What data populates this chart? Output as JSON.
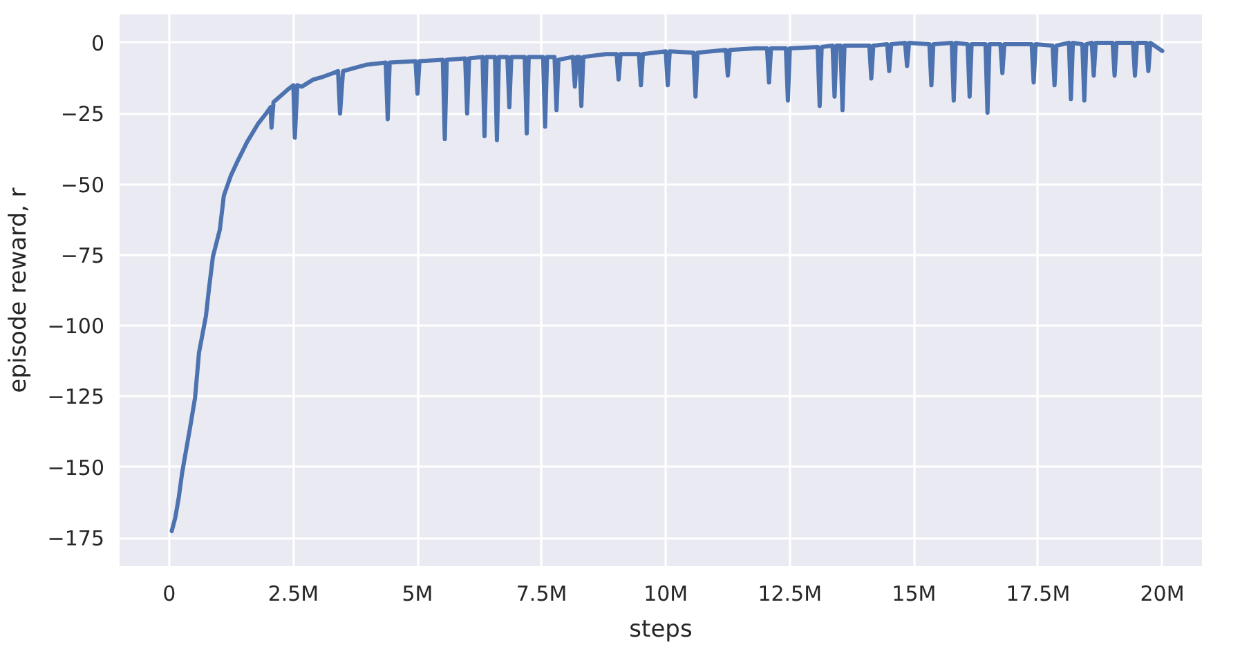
{
  "chart_data": {
    "type": "line",
    "xlabel": "steps",
    "ylabel": "episode reward, r",
    "xlim": [
      -1000000,
      20800000
    ],
    "ylim": [
      -185,
      10
    ],
    "xticks": [
      0,
      {
        "value": 2500000,
        "label": "2.5M"
      },
      {
        "value": 5000000,
        "label": "5M"
      },
      {
        "value": 7500000,
        "label": "7.5M"
      },
      {
        "value": 10000000,
        "label": "10M"
      },
      {
        "value": 12500000,
        "label": "12.5M"
      },
      {
        "value": 15000000,
        "label": "15M"
      },
      {
        "value": 17500000,
        "label": "17.5M"
      },
      {
        "value": 20000000,
        "label": "20M"
      }
    ],
    "yticks": [
      0,
      {
        "value": -25,
        "label": "−25"
      },
      {
        "value": -50,
        "label": "−50"
      },
      {
        "value": -75,
        "label": "−75"
      },
      {
        "value": -100,
        "label": "−100"
      },
      {
        "value": -125,
        "label": "−125"
      },
      {
        "value": -150,
        "label": "−150"
      },
      {
        "value": -175,
        "label": "−175"
      }
    ],
    "grid": true,
    "marker": "none",
    "line_style": "solid",
    "series": [
      {
        "color": "#4c72b0",
        "x": [
          50000,
          120000,
          190000,
          260000,
          330000,
          420000,
          520000,
          600000,
          740000,
          800000,
          880000,
          1020000,
          1100000,
          1240000,
          1380000,
          1570000,
          1790000,
          1950000,
          2040000,
          2060000,
          2100000,
          2390000,
          2500000,
          2530000,
          2580000,
          2670000,
          2900000,
          3100000,
          3300000,
          3400000,
          3440000,
          3500000,
          3960000,
          4360000,
          4400000,
          4440000,
          4960000,
          5000000,
          5040000,
          5510000,
          5550000,
          5590000,
          5960000,
          6000000,
          6040000,
          6310000,
          6350000,
          6390000,
          6560000,
          6600000,
          6640000,
          6810000,
          6850000,
          6890000,
          7160000,
          7200000,
          7240000,
          7530000,
          7570000,
          7610000,
          7760000,
          7800000,
          7840000,
          8130000,
          8170000,
          8210000,
          8260000,
          8300000,
          8340000,
          8800000,
          9010000,
          9050000,
          9090000,
          9460000,
          9500000,
          9540000,
          10000000,
          10040000,
          10080000,
          10560000,
          10600000,
          10640000,
          11210000,
          11250000,
          11290000,
          11800000,
          12040000,
          12080000,
          12120000,
          12420000,
          12460000,
          12500000,
          13060000,
          13100000,
          13140000,
          13360000,
          13400000,
          13440000,
          13520000,
          13560000,
          13600000,
          14100000,
          14140000,
          14180000,
          14460000,
          14500000,
          14540000,
          14820000,
          14860000,
          14900000,
          15310000,
          15350000,
          15390000,
          15760000,
          15800000,
          15840000,
          16080000,
          16120000,
          16160000,
          16440000,
          16480000,
          16520000,
          16740000,
          16780000,
          16820000,
          17370000,
          17410000,
          17450000,
          17790000,
          17830000,
          17870000,
          18120000,
          18160000,
          18200000,
          18390000,
          18430000,
          18470000,
          18580000,
          18620000,
          18660000,
          19000000,
          19040000,
          19080000,
          19410000,
          19450000,
          19490000,
          19680000,
          19720000,
          19760000,
          20000000
        ],
        "values": [
          -172.6,
          -168,
          -161,
          -152,
          -145,
          -136,
          -125.5,
          -109.5,
          -96.5,
          -87,
          -75.6,
          -66,
          -54,
          -47,
          -41.7,
          -35,
          -28.6,
          -25,
          -22.8,
          -30,
          -21,
          -16.5,
          -15,
          -33.5,
          -15,
          -15.5,
          -13,
          -12,
          -10.7,
          -10,
          -25,
          -10,
          -7.8,
          -7,
          -27,
          -7,
          -6.5,
          -18,
          -6.5,
          -6,
          -34,
          -6,
          -5.5,
          -25,
          -5.5,
          -5,
          -33,
          -5,
          -5,
          -34.4,
          -5,
          -5,
          -22.8,
          -5,
          -5,
          -32,
          -5,
          -5,
          -29.6,
          -5,
          -5,
          -23.8,
          -6,
          -5,
          -15.5,
          -5,
          -5,
          -22.3,
          -5,
          -4,
          -4,
          -13,
          -4,
          -4,
          -15,
          -4,
          -3,
          -15,
          -3,
          -3.5,
          -19,
          -3.5,
          -2.5,
          -11.6,
          -2.5,
          -2,
          -2,
          -14,
          -2,
          -2,
          -20.4,
          -2,
          -1.5,
          -22.3,
          -1.5,
          -1,
          -19,
          -1,
          -1,
          -23.8,
          -1,
          -1,
          -12.6,
          -1,
          -0.5,
          -10,
          -0.5,
          0,
          -8.2,
          0,
          -0.5,
          -15,
          -0.5,
          0,
          -20.4,
          0,
          -0.5,
          -19,
          -0.5,
          -0.5,
          -24.7,
          -0.5,
          -0.5,
          -10.7,
          -0.5,
          -0.5,
          -14,
          -0.5,
          -1,
          -15,
          -1,
          0,
          -19.9,
          0,
          -0.5,
          -20.4,
          -0.5,
          0,
          -11.6,
          0,
          0,
          -11.6,
          0,
          0,
          -11.6,
          0,
          0,
          -10,
          0,
          -2.9
        ]
      }
    ]
  }
}
